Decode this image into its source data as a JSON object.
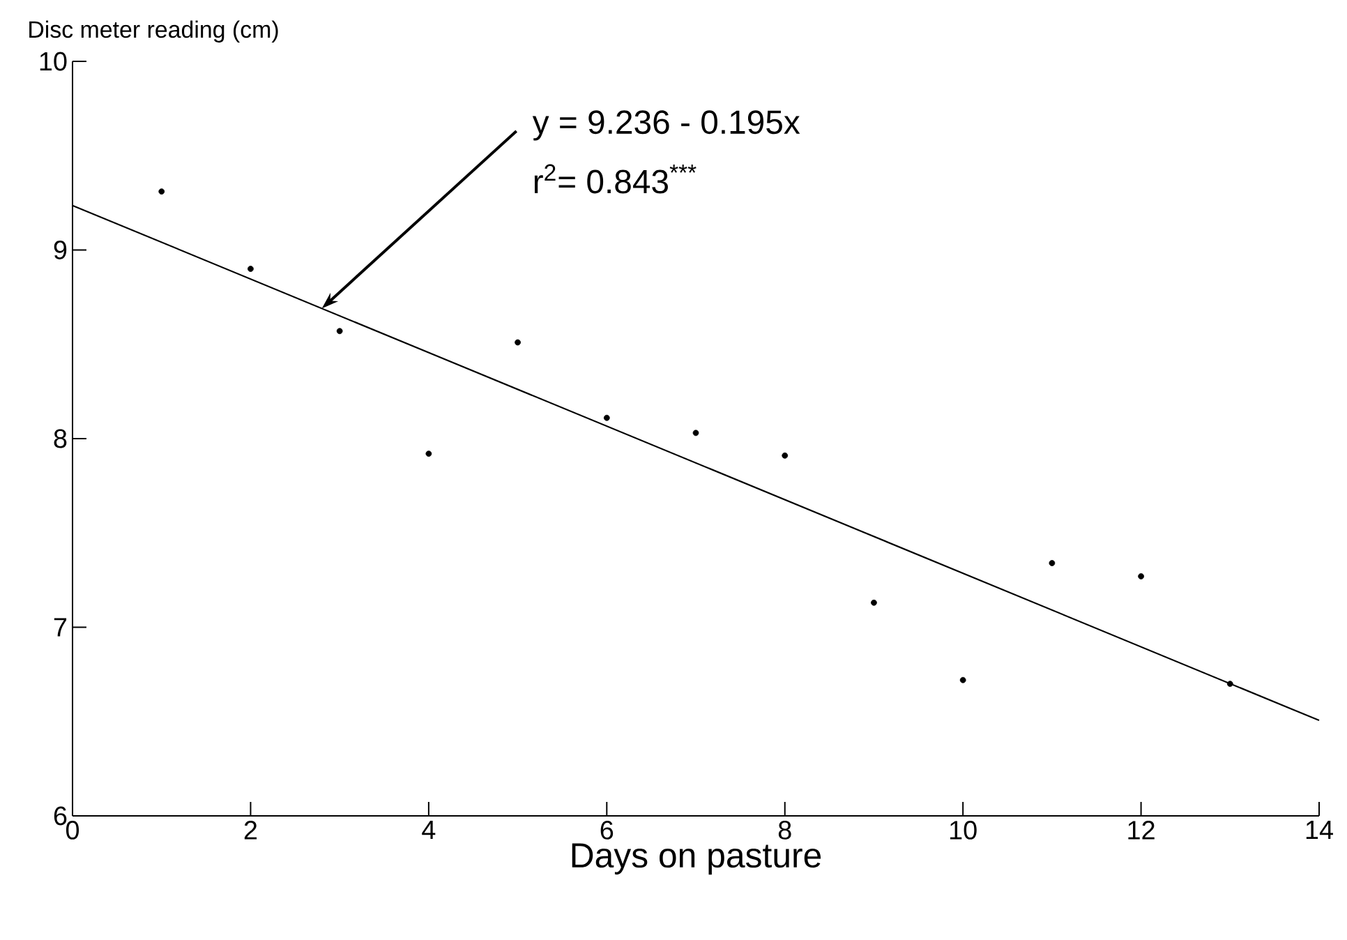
{
  "chart_data": {
    "type": "line",
    "xlabel": "Days on pasture",
    "ylabel": "Disc meter reading (cm)",
    "xlim": [
      0,
      14
    ],
    "ylim": [
      6,
      10
    ],
    "xticks": [
      0,
      2,
      4,
      6,
      8,
      10,
      12,
      14
    ],
    "yticks": [
      6,
      7,
      8,
      9,
      10
    ],
    "grid": false,
    "series": [
      {
        "type": "scatter",
        "marker": "circle",
        "color": "#000000",
        "x": [
          1,
          2,
          3,
          4,
          5,
          6,
          7,
          8,
          9,
          10,
          11,
          12,
          13
        ],
        "values": [
          9.31,
          8.9,
          8.57,
          7.92,
          8.51,
          8.11,
          8.03,
          7.91,
          7.13,
          6.72,
          7.34,
          7.27,
          6.7
        ]
      },
      {
        "marker": "none",
        "color": "#000000",
        "line_style": "solid",
        "x": [
          0,
          14
        ],
        "values": [
          9.236,
          6.506
        ]
      }
    ],
    "annotations": [
      {
        "text": "y = 9.236 - 0.195x",
        "x": 2.8,
        "y": 8.69
      },
      "r$^{2}$= 0.843$^{***}$"
    ]
  }
}
